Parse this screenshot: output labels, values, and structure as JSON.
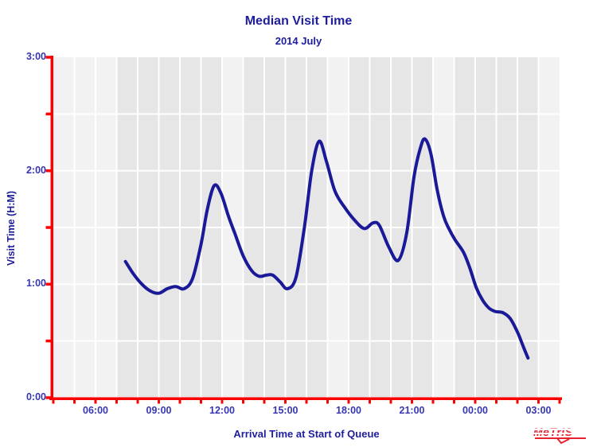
{
  "chart_data": {
    "type": "line",
    "title": "Median Visit Time",
    "subtitle": "2014 July",
    "xlabel": "Arrival Time at Start of Queue",
    "ylabel": "Visit Time (H:M)",
    "x_axis": {
      "start_hour": 4,
      "end_hour": 28,
      "major_tick_hours": [
        6,
        9,
        12,
        15,
        18,
        21,
        24,
        27
      ],
      "major_tick_labels": [
        "06:00",
        "09:00",
        "12:00",
        "15:00",
        "18:00",
        "21:00",
        "00:00",
        "03:00"
      ],
      "minor_tick_every_hours": 1
    },
    "y_axis": {
      "min": 0,
      "max": 3,
      "major_tick_values": [
        0,
        1,
        2,
        3
      ],
      "major_tick_labels": [
        "0:00",
        "1:00",
        "2:00",
        "3:00"
      ],
      "minor_tick_every": 0.5
    },
    "grid": {
      "horizontal_line_every": 0.5,
      "vertical_line_every_hours": 1,
      "line_color": "#ffffff"
    },
    "bands": {
      "light_hours_mod24": [
        3,
        4,
        5,
        6,
        12,
        17,
        22
      ]
    },
    "series": [
      {
        "name": "Median Visit Time",
        "points_hour_vs_hours": [
          [
            7.42,
            1.2
          ],
          [
            7.8,
            1.09
          ],
          [
            8.2,
            1.0
          ],
          [
            8.6,
            0.94
          ],
          [
            9.0,
            0.92
          ],
          [
            9.4,
            0.96
          ],
          [
            9.8,
            0.98
          ],
          [
            10.2,
            0.96
          ],
          [
            10.6,
            1.05
          ],
          [
            11.0,
            1.35
          ],
          [
            11.3,
            1.66
          ],
          [
            11.63,
            1.87
          ],
          [
            11.95,
            1.8
          ],
          [
            12.3,
            1.6
          ],
          [
            12.6,
            1.45
          ],
          [
            13.0,
            1.25
          ],
          [
            13.4,
            1.12
          ],
          [
            13.75,
            1.07
          ],
          [
            14.1,
            1.08
          ],
          [
            14.4,
            1.08
          ],
          [
            14.75,
            1.02
          ],
          [
            15.1,
            0.96
          ],
          [
            15.5,
            1.06
          ],
          [
            15.9,
            1.5
          ],
          [
            16.25,
            2.0
          ],
          [
            16.6,
            2.26
          ],
          [
            16.95,
            2.08
          ],
          [
            17.35,
            1.82
          ],
          [
            17.8,
            1.68
          ],
          [
            18.3,
            1.56
          ],
          [
            18.75,
            1.49
          ],
          [
            19.15,
            1.54
          ],
          [
            19.45,
            1.52
          ],
          [
            19.9,
            1.33
          ],
          [
            20.35,
            1.21
          ],
          [
            20.75,
            1.45
          ],
          [
            21.1,
            1.95
          ],
          [
            21.4,
            2.2
          ],
          [
            21.62,
            2.28
          ],
          [
            21.9,
            2.15
          ],
          [
            22.2,
            1.83
          ],
          [
            22.5,
            1.6
          ],
          [
            22.75,
            1.49
          ],
          [
            23.05,
            1.39
          ],
          [
            23.45,
            1.28
          ],
          [
            23.75,
            1.14
          ],
          [
            24.05,
            0.97
          ],
          [
            24.35,
            0.86
          ],
          [
            24.65,
            0.79
          ],
          [
            24.95,
            0.76
          ],
          [
            25.3,
            0.75
          ],
          [
            25.65,
            0.7
          ],
          [
            26.0,
            0.58
          ],
          [
            26.3,
            0.44
          ],
          [
            26.5,
            0.35
          ]
        ]
      }
    ],
    "colors": {
      "axis": "#ff0000",
      "curve": "#1a1a99",
      "band_light": "#f2f2f2",
      "band_dark": "#e6e6e6",
      "grid": "#ffffff",
      "tick_label_text": "#3636b2",
      "title_text": "#1e1e9c",
      "logo": "#e62231"
    }
  },
  "footer": {
    "logo_text": "MeTrIS"
  }
}
